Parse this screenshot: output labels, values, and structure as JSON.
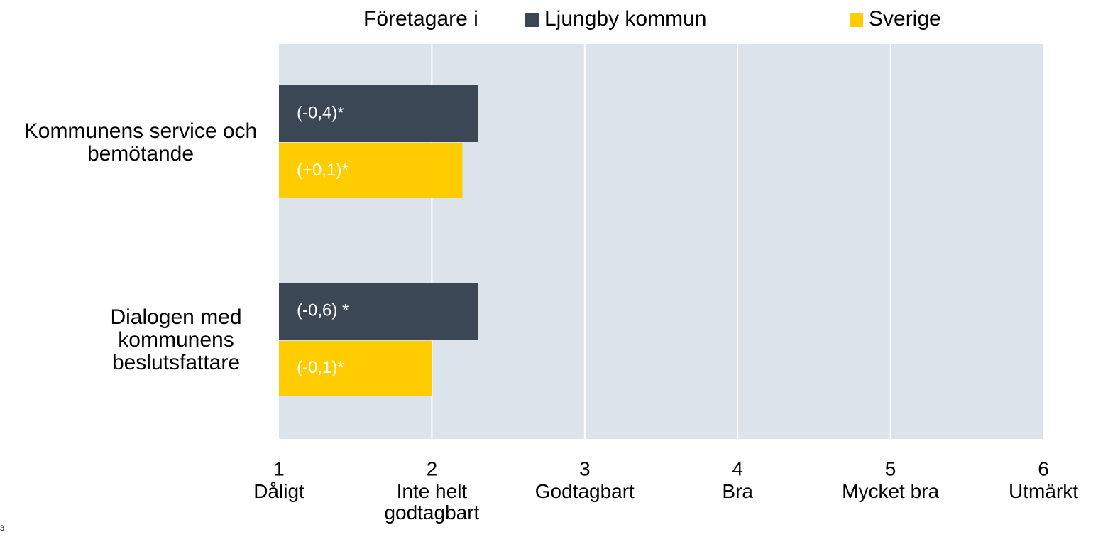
{
  "chart_data": {
    "type": "barh",
    "legend_title": "Företagare i",
    "categories": [
      "Kommunens service och bemötande",
      "Dialogen med kommunens beslutsfattare"
    ],
    "series": [
      {
        "name": "Ljungby kommun",
        "color": "#3b4754",
        "values": [
          2.3,
          2.3
        ],
        "annotations": [
          "(-0,4)*",
          "(-0,6) *"
        ]
      },
      {
        "name": "Sverige",
        "color": "#ffcc00",
        "values": [
          2.2,
          2.0
        ],
        "annotations": [
          "(+0,1)*",
          "(-0,1)*"
        ]
      }
    ],
    "xlim": [
      1,
      6
    ],
    "xticks": [
      1,
      2,
      3,
      4,
      5,
      6
    ],
    "xtick_descriptions": [
      "Dåligt",
      "Inte helt godtagbart",
      "Godtagbart",
      "Bra",
      "Mycket bra",
      "Utmärkt"
    ],
    "grid": true,
    "legend": "top",
    "page_number": "3"
  }
}
